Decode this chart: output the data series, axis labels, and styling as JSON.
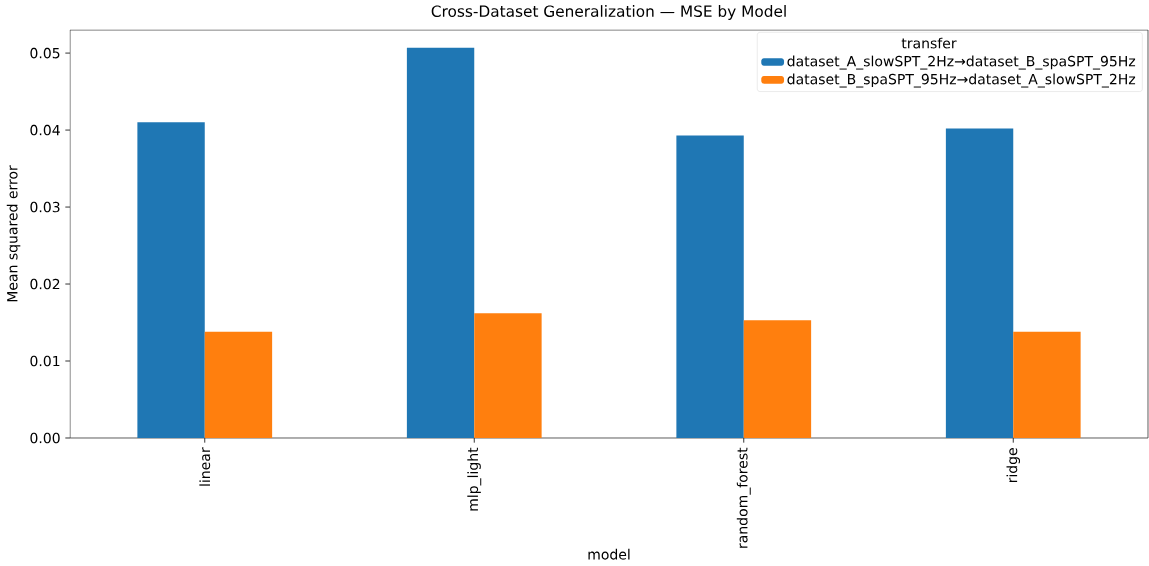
{
  "chart_data": {
    "type": "bar",
    "title": "Cross-Dataset Generalization — MSE by Model",
    "xlabel": "model",
    "ylabel": "Mean squared error",
    "legend_title": "transfer",
    "legend": "top right",
    "categories": [
      "linear",
      "mlp_light",
      "random_forest",
      "ridge"
    ],
    "series": [
      {
        "name": "dataset_A_slowSPT_2Hz→dataset_B_spaSPT_95Hz",
        "color": "#1f77b4",
        "values": [
          0.041,
          0.0507,
          0.0393,
          0.0402
        ]
      },
      {
        "name": "dataset_B_spaSPT_95Hz→dataset_A_slowSPT_2Hz",
        "color": "#ff7f0e",
        "values": [
          0.0138,
          0.0162,
          0.0153,
          0.0138
        ]
      }
    ],
    "ylim": [
      0,
      0.053
    ],
    "yticks": [
      {
        "value": 0,
        "label": "0.00"
      },
      {
        "value": 0.01,
        "label": "0.01"
      },
      {
        "value": 0.02,
        "label": "0.02"
      },
      {
        "value": 0.03,
        "label": "0.03"
      },
      {
        "value": 0.04,
        "label": "0.04"
      },
      {
        "value": 0.05,
        "label": "0.05"
      }
    ]
  }
}
